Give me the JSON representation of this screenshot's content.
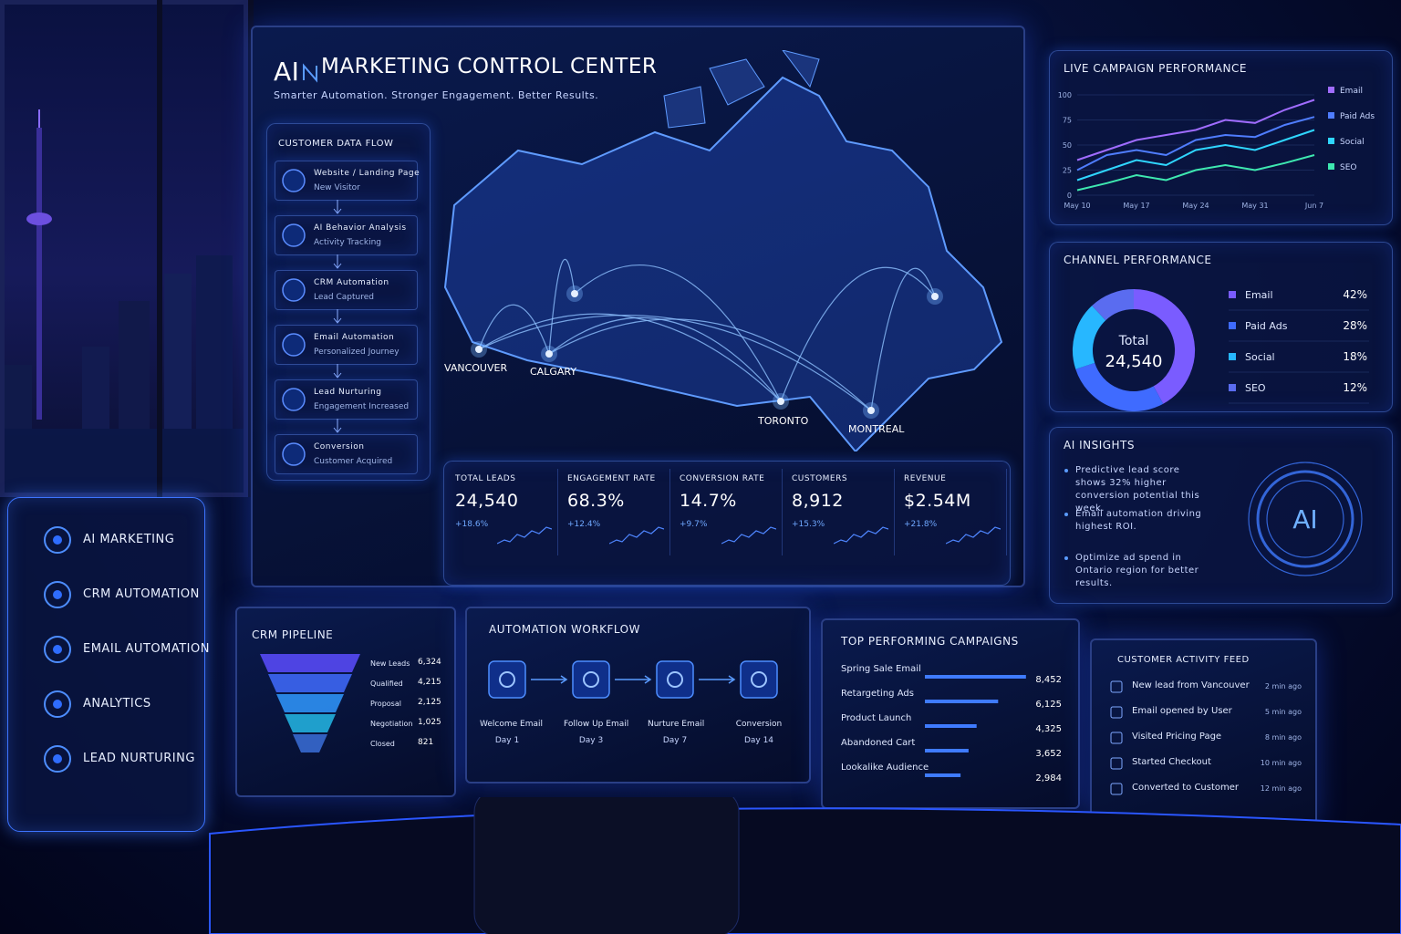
{
  "header": {
    "title_ai": "AI",
    "title": "MARKETING CONTROL CENTER",
    "subtitle": "Smarter Automation. Stronger Engagement. Better Results."
  },
  "side_menu": [
    "AI MARKETING",
    "CRM AUTOMATION",
    "EMAIL AUTOMATION",
    "ANALYTICS",
    "LEAD NURTURING"
  ],
  "data_flow": {
    "title": "CUSTOMER DATA FLOW",
    "steps": [
      {
        "title": "Website / Landing Page",
        "subtitle": "New Visitor"
      },
      {
        "title": "AI Behavior Analysis",
        "subtitle": "Activity Tracking"
      },
      {
        "title": "CRM Automation",
        "subtitle": "Lead Captured"
      },
      {
        "title": "Email Automation",
        "subtitle": "Personalized Journey"
      },
      {
        "title": "Lead Nurturing",
        "subtitle": "Engagement Increased"
      },
      {
        "title": "Conversion",
        "subtitle": "Customer Acquired"
      }
    ]
  },
  "map": {
    "cities": [
      "VANCOUVER",
      "CALGARY",
      "TORONTO",
      "MONTREAL"
    ]
  },
  "kpis": [
    {
      "label": "TOTAL LEADS",
      "value": "24,540",
      "change": "+18.6%"
    },
    {
      "label": "ENGAGEMENT RATE",
      "value": "68.3%",
      "change": "+12.4%"
    },
    {
      "label": "CONVERSION RATE",
      "value": "14.7%",
      "change": "+9.7%"
    },
    {
      "label": "CUSTOMERS",
      "value": "8,912",
      "change": "+15.3%"
    },
    {
      "label": "REVENUE",
      "value": "$2.54M",
      "change": "+21.8%"
    }
  ],
  "campaign_chart": {
    "type": "line",
    "title": "LIVE CAMPAIGN PERFORMANCE",
    "categories": [
      "May 10",
      null,
      "May 17",
      null,
      "May 24",
      null,
      "May 31",
      null,
      "Jun 7"
    ],
    "ylim": [
      0,
      100
    ],
    "yticks": [
      0,
      25,
      50,
      75,
      100
    ],
    "series": [
      {
        "name": "Email",
        "color": "#a06cff",
        "values": [
          35,
          45,
          55,
          60,
          65,
          75,
          72,
          85,
          95
        ]
      },
      {
        "name": "Paid Ads",
        "color": "#4f7dff",
        "values": [
          25,
          40,
          45,
          40,
          55,
          60,
          58,
          70,
          78
        ]
      },
      {
        "name": "Social",
        "color": "#2fd6ff",
        "values": [
          15,
          25,
          35,
          30,
          45,
          50,
          45,
          55,
          65
        ]
      },
      {
        "name": "SEO",
        "color": "#3ee8b0",
        "values": [
          5,
          12,
          20,
          15,
          25,
          30,
          25,
          32,
          40
        ]
      }
    ]
  },
  "channel_chart": {
    "type": "pie",
    "title": "CHANNEL PERFORMANCE",
    "center_label": "Total",
    "center_value": "24,540",
    "categories": [
      "Email",
      "Paid Ads",
      "Social",
      "SEO"
    ],
    "values": [
      42,
      28,
      18,
      12
    ],
    "value_labels": [
      "42%",
      "28%",
      "18%",
      "12%"
    ],
    "colors": [
      "#7a5cff",
      "#3f6bff",
      "#27b7ff",
      "#5a6cf0"
    ]
  },
  "ai_insights": {
    "title": "AI INSIGHTS",
    "badge": "AI",
    "items": [
      "Predictive lead score shows 32% higher conversion potential this week.",
      "Email automation driving highest ROI.",
      "Optimize ad spend in Ontario region for better results."
    ]
  },
  "crm_pipeline": {
    "title": "CRM PIPELINE",
    "stages": [
      {
        "label": "New Leads",
        "count": "6,324"
      },
      {
        "label": "Qualified",
        "count": "4,215"
      },
      {
        "label": "Proposal",
        "count": "2,125"
      },
      {
        "label": "Negotiation",
        "count": "1,025"
      },
      {
        "label": "Closed",
        "count": "821"
      }
    ]
  },
  "automation_workflow": {
    "title": "AUTOMATION WORKFLOW",
    "steps": [
      {
        "title": "Welcome Email",
        "day": "Day 1"
      },
      {
        "title": "Follow Up Email",
        "day": "Day 3"
      },
      {
        "title": "Nurture Email",
        "day": "Day 7"
      },
      {
        "title": "Conversion",
        "day": "Day 14"
      }
    ]
  },
  "top_campaigns": {
    "type": "bar",
    "title": "TOP PERFORMING CAMPAIGNS",
    "color": "#3f7bff",
    "categories": [
      "Spring Sale Email",
      "Retargeting Ads",
      "Product Launch",
      "Abandoned Cart",
      "Lookalike Audience"
    ],
    "values": [
      8452,
      6125,
      4325,
      3652,
      2984
    ],
    "value_labels": [
      "8,452",
      "6,125",
      "4,325",
      "3,652",
      "2,984"
    ],
    "xlim": [
      0,
      9000
    ]
  },
  "activity_feed": {
    "title": "CUSTOMER ACTIVITY FEED",
    "items": [
      {
        "text": "New lead from Vancouver",
        "time": "2 min ago"
      },
      {
        "text": "Email opened by User",
        "time": "5 min ago"
      },
      {
        "text": "Visited Pricing Page",
        "time": "8 min ago"
      },
      {
        "text": "Started Checkout",
        "time": "10 min ago"
      },
      {
        "text": "Converted to Customer",
        "time": "12 min ago"
      }
    ]
  }
}
